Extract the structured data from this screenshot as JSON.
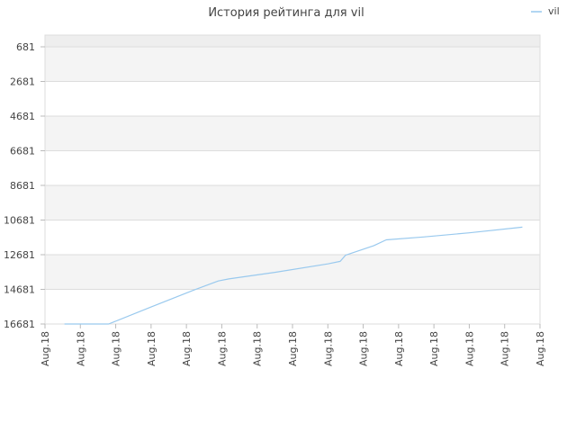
{
  "chart_data": {
    "type": "line",
    "title": "История рейтинга для vil",
    "xlabel": "",
    "ylabel": "",
    "legend": {
      "position": "top-right",
      "entries": [
        "vil"
      ]
    },
    "grid": true,
    "y_reversed": true,
    "ylim": [
      681,
      16681
    ],
    "yticks": [
      681,
      2681,
      4681,
      6681,
      8681,
      10681,
      12681,
      14681,
      16681
    ],
    "xtick_labels": [
      "Aug.18",
      "Aug.18",
      "Aug.18",
      "Aug.18",
      "Aug.18",
      "Aug.18",
      "Aug.18",
      "Aug.18",
      "Aug.18",
      "Aug.18",
      "Aug.18",
      "Aug.18",
      "Aug.18",
      "Aug.18",
      "Aug.18"
    ],
    "xlim": [
      0,
      14
    ],
    "series": [
      {
        "name": "vil",
        "color": "#99c9ee",
        "x": [
          0.55,
          1.8,
          3.0,
          4.2,
          4.9,
          5.2,
          6.5,
          8.0,
          8.35,
          8.5,
          9.3,
          9.65,
          10.7,
          12.0,
          13.5
        ],
        "y": [
          16681,
          16681,
          15701,
          14730,
          14200,
          14081,
          13701,
          13210,
          13065,
          12712,
          12156,
          11825,
          11660,
          11420,
          11093
        ]
      }
    ]
  }
}
